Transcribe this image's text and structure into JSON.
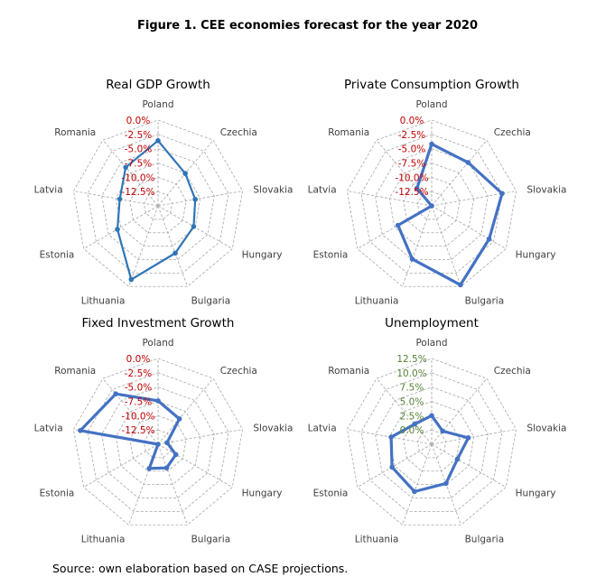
{
  "figure_title": "Figure 1. CEE economies forecast for the year 2020",
  "source": "Source: own elaboration based on CASE projections.",
  "colors": {
    "series": "#4472c4",
    "series_dark": "#2e75b6",
    "grid": "#a6a6a6",
    "tick_red": "#c00000",
    "tick_green": "#548235"
  },
  "chart_data": [
    {
      "type": "radar",
      "title": "Real GDP Growth",
      "categories": [
        "Poland",
        "Czechia",
        "Slovakia",
        "Hungary",
        "Bulgaria",
        "Lithuania",
        "Estonia",
        "Latvia",
        "Romania"
      ],
      "tick_labels": [
        "0.0%",
        "-2.5%",
        "-5.0%",
        "-7.5%",
        "-10.0%",
        "-12.5%"
      ],
      "range": [
        -15,
        0
      ],
      "series": [
        {
          "values": [
            -3.6,
            -7.6,
            -8.4,
            -7.8,
            -6.2,
            -1.3,
            -6.8,
            -8.2,
            -6.2
          ]
        }
      ]
    },
    {
      "type": "radar",
      "title": "Private Consumption Growth",
      "categories": [
        "Poland",
        "Czechia",
        "Slovakia",
        "Hungary",
        "Bulgaria",
        "Lithuania",
        "Estonia",
        "Latvia",
        "Romania"
      ],
      "tick_labels": [
        "0.0%",
        "-2.5%",
        "-5.0%",
        "-7.5%",
        "-10.0%",
        "-12.5%"
      ],
      "range": [
        -15,
        0
      ],
      "series": [
        {
          "values": [
            -4.2,
            -5.1,
            -2.5,
            -3.4,
            -0.3,
            -5.1,
            -8.2,
            -15.0,
            -11.0
          ]
        }
      ]
    },
    {
      "type": "radar",
      "title": "Fixed Investment Growth",
      "categories": [
        "Poland",
        "Czechia",
        "Slovakia",
        "Hungary",
        "Bulgaria",
        "Lithuania",
        "Estonia",
        "Latvia",
        "Romania"
      ],
      "tick_labels": [
        "0.0%",
        "-2.5%",
        "-5.0%",
        "-7.5%",
        "-10.0%",
        "-12.5%"
      ],
      "range": [
        -15,
        0
      ],
      "series": [
        {
          "values": [
            -7.4,
            -9.2,
            -13.4,
            -11.4,
            -10.6,
            -10.5,
            -15.0,
            -1.2,
            -3.5
          ]
        }
      ]
    },
    {
      "type": "radar",
      "title": "Unemployment",
      "categories": [
        "Poland",
        "Czechia",
        "Slovakia",
        "Hungary",
        "Bulgaria",
        "Lithuania",
        "Estonia",
        "Latvia",
        "Romania"
      ],
      "tick_labels": [
        "12.5%",
        "10.0%",
        "7.5%",
        "5.0%",
        "2.5%",
        "0.0%"
      ],
      "range": [
        0,
        15
      ],
      "series": [
        {
          "values": [
            5.0,
            3.0,
            6.5,
            5.2,
            7.3,
            8.8,
            8.0,
            7.2,
            4.6
          ]
        }
      ]
    }
  ]
}
